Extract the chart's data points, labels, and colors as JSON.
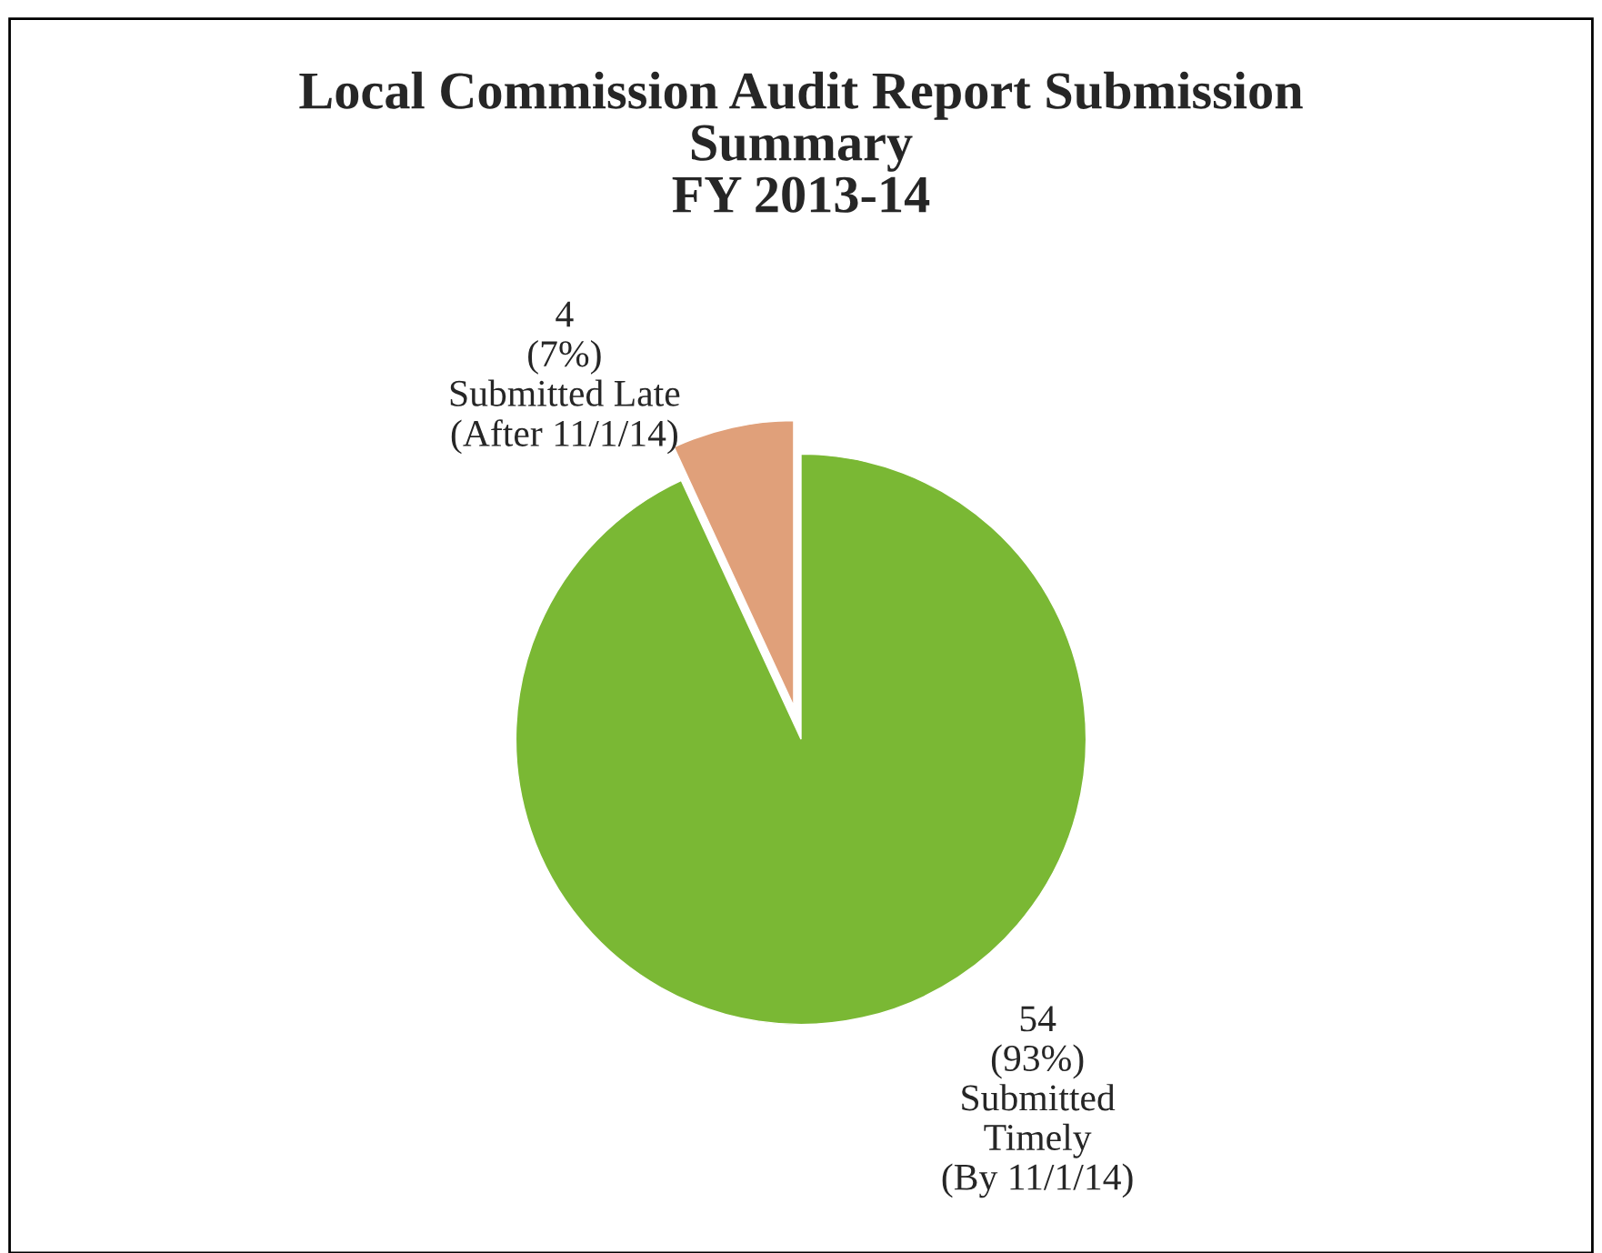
{
  "chart_data": {
    "type": "pie",
    "title": "Local Commission Audit Report Submission\nSummary\nFY 2013-14",
    "categories": [
      "Submitted\nTimely\n(By 11/1/14)",
      "Submitted Late\n(After 11/1/14)"
    ],
    "values": [
      54,
      4
    ],
    "value_labels": [
      "54\n(93%)",
      "4\n(7%)"
    ],
    "colors": [
      "#7ab834",
      "#e0a07a"
    ]
  }
}
